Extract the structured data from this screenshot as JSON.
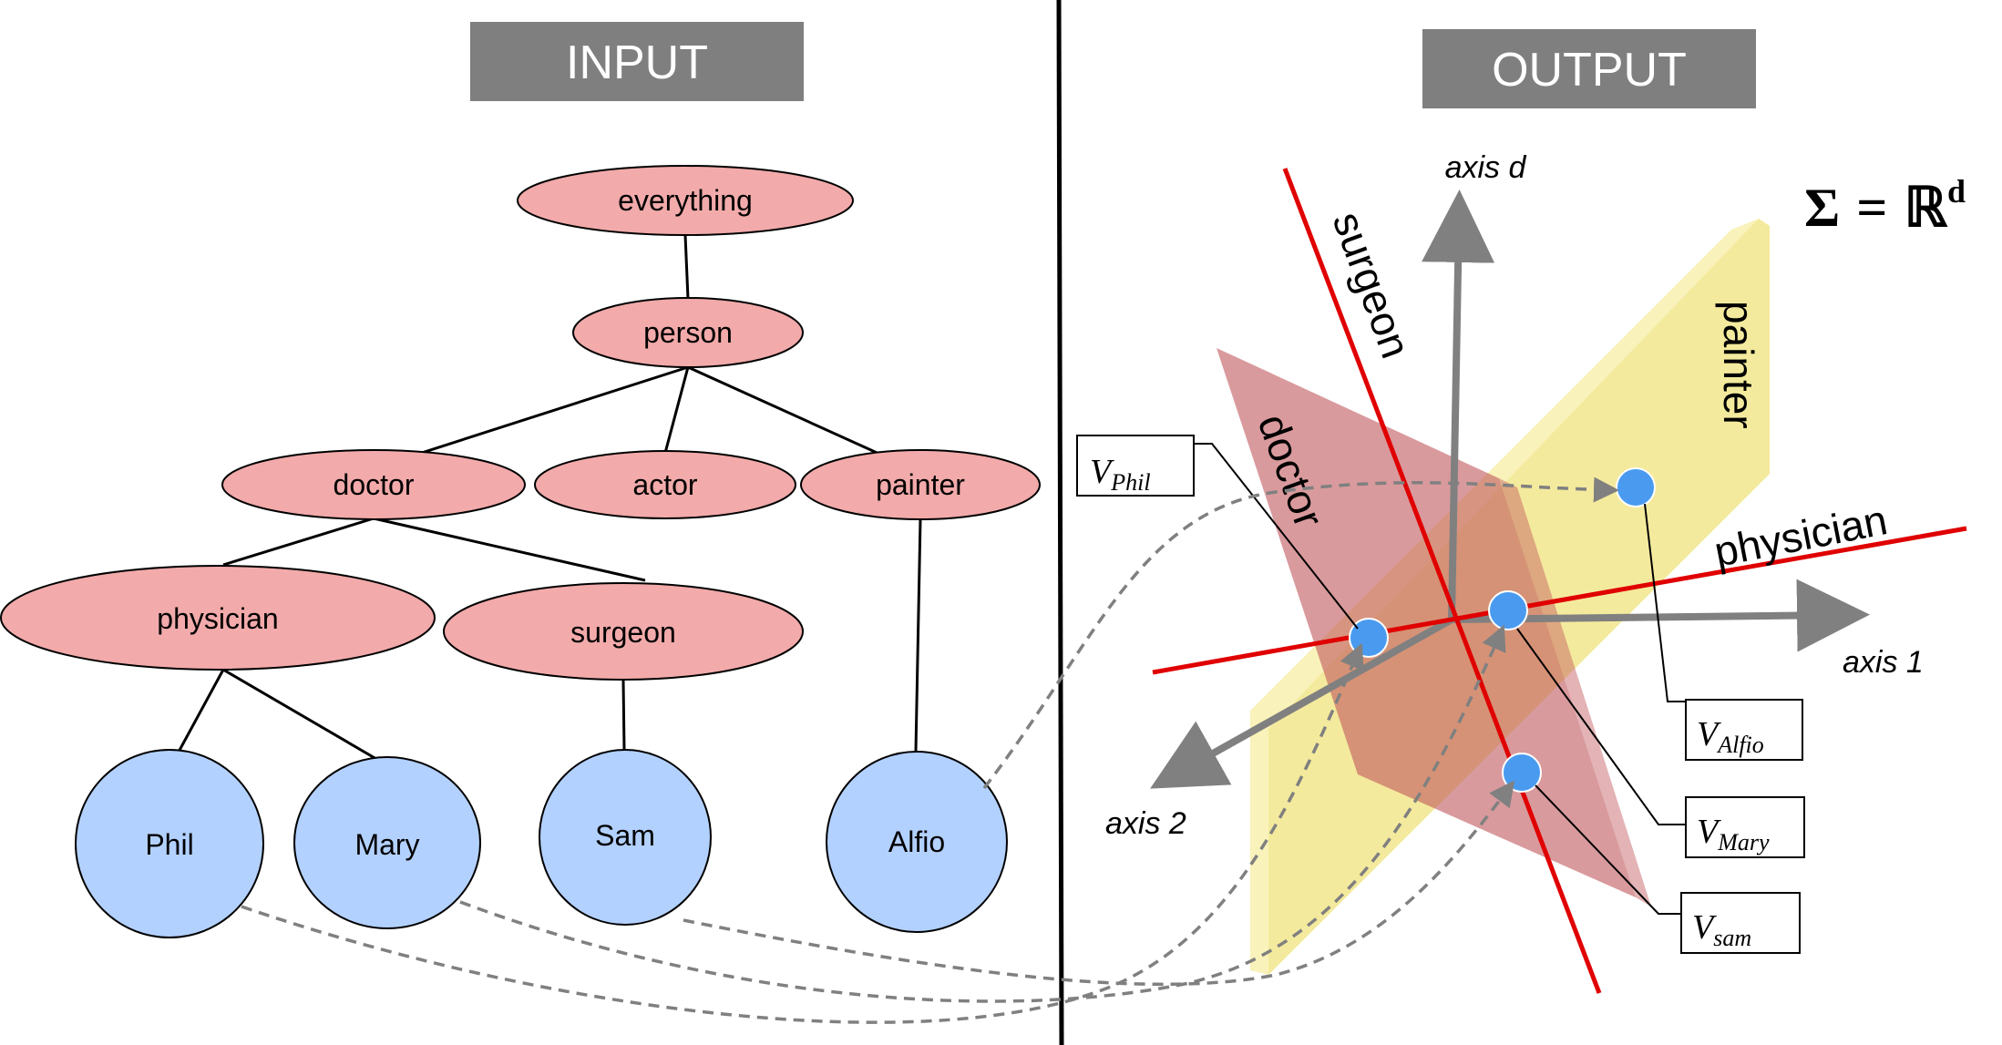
{
  "headers": {
    "input": "INPUT",
    "output": "OUTPUT"
  },
  "tree": {
    "nodes": {
      "everything": "everything",
      "person": "person",
      "doctor": "doctor",
      "actor": "actor",
      "painter": "painter",
      "physician": "physician",
      "surgeon": "surgeon",
      "phil": "Phil",
      "mary": "Mary",
      "sam": "Sam",
      "alfio": "Alfio"
    }
  },
  "space": {
    "axes": {
      "axis_1": "axis 1",
      "axis_2": "axis 2",
      "axis_d": "axis d"
    },
    "concepts": {
      "surgeon": "surgeon",
      "doctor": "doctor",
      "painter": "painter",
      "physician": "physician"
    },
    "vectors": {
      "phil": {
        "base": "V",
        "sub": "Phil"
      },
      "alfio": {
        "base": "V",
        "sub": "Alfio"
      },
      "mary": {
        "base": "V",
        "sub": "Mary"
      },
      "sam": {
        "base": "V",
        "sub": "sam"
      }
    },
    "formula": {
      "lhs": "Σ",
      "eq": "=",
      "rhs": "ℝ",
      "sup": "d"
    }
  },
  "colors": {
    "concept_fill": "#f2aaaa",
    "instance_fill": "#b3d1ff",
    "header_bg": "#7f7f7f",
    "doctor_plane": "#c0565b",
    "painter_plane": "#f5ea8c",
    "red_line": "#e00000",
    "axis_gray": "#808080",
    "point_blue": "#4a9bf0"
  }
}
